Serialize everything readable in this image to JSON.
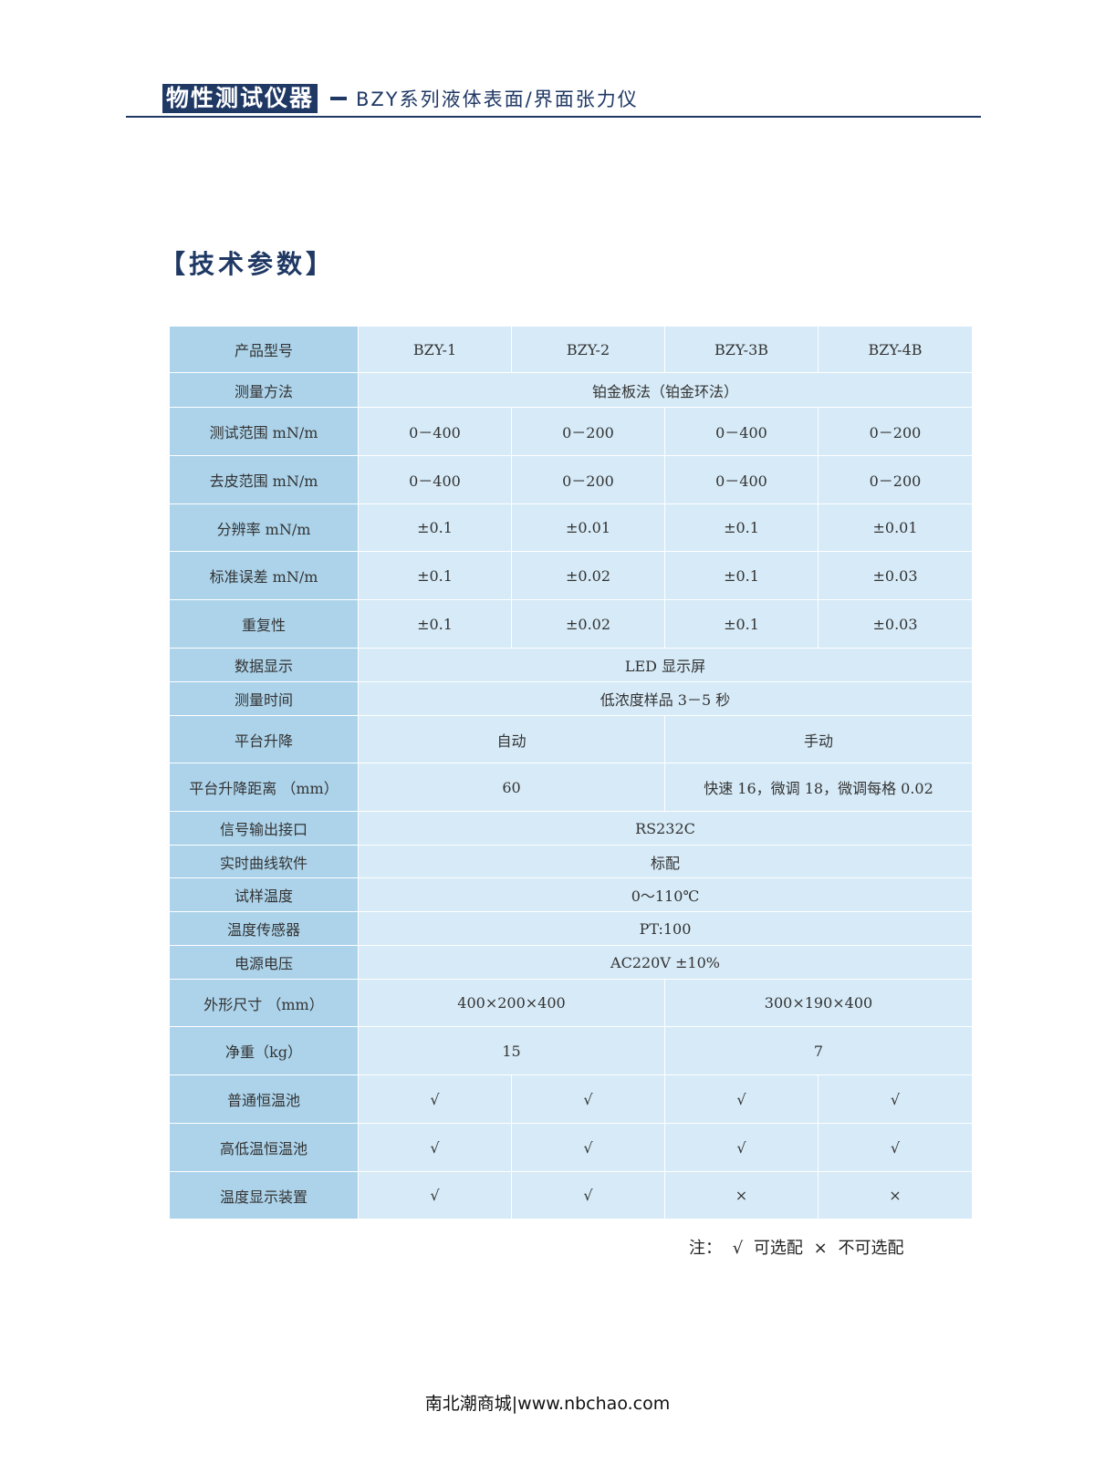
{
  "header": {
    "brand": "物性测试仪器",
    "subtitle": "BZY系列液体表面/界面张力仪"
  },
  "section_title": "【技术参数】",
  "table": {
    "rows": [
      {
        "label": "产品型号",
        "cells": [
          {
            "t": "BZY-1"
          },
          {
            "t": "BZY-2"
          },
          {
            "t": "BZY-3B"
          },
          {
            "t": "BZY-4B"
          }
        ],
        "h": 51
      },
      {
        "label": "测量方法",
        "cells": [
          {
            "t": "铂金板法（铂金环法）",
            "span": 4
          }
        ],
        "h": 38
      },
      {
        "label": "测试范围 mN/m",
        "cells": [
          {
            "t": "0－400"
          },
          {
            "t": "0－200"
          },
          {
            "t": "0－400"
          },
          {
            "t": "0－200"
          }
        ],
        "h": 53
      },
      {
        "label": "去皮范围 mN/m",
        "cells": [
          {
            "t": "0－400"
          },
          {
            "t": "0－200"
          },
          {
            "t": "0－400"
          },
          {
            "t": "0－200"
          }
        ],
        "h": 53
      },
      {
        "label": "分辨率 mN/m",
        "cells": [
          {
            "t": "±0.1"
          },
          {
            "t": "±0.01"
          },
          {
            "t": "±0.1"
          },
          {
            "t": "±0.01"
          }
        ],
        "h": 52
      },
      {
        "label": "标准误差 mN/m",
        "cells": [
          {
            "t": "±0.1"
          },
          {
            "t": "±0.02"
          },
          {
            "t": "±0.1"
          },
          {
            "t": "±0.03"
          }
        ],
        "h": 53
      },
      {
        "label": "重复性",
        "cells": [
          {
            "t": "±0.1"
          },
          {
            "t": "±0.02"
          },
          {
            "t": "±0.1"
          },
          {
            "t": "±0.03"
          }
        ],
        "h": 53
      },
      {
        "label": "数据显示",
        "cells": [
          {
            "t": "LED 显示屏",
            "span": 4
          }
        ],
        "h": 37
      },
      {
        "label": "测量时间",
        "cells": [
          {
            "t": "低浓度样品 3－5 秒",
            "span": 4
          }
        ],
        "h": 37
      },
      {
        "label": "平台升降",
        "cells": [
          {
            "t": "自动",
            "span": 2
          },
          {
            "t": "手动",
            "span": 2
          }
        ],
        "h": 52
      },
      {
        "label": "平台升降距离 （mm）",
        "cells": [
          {
            "t": "60",
            "span": 2
          },
          {
            "t": "快速 16，微调 18，微调每格 0.02",
            "span": 2
          }
        ],
        "h": 53
      },
      {
        "label": "信号输出接口",
        "cells": [
          {
            "t": "RS232C",
            "span": 4
          }
        ],
        "h": 37
      },
      {
        "label": "实时曲线软件",
        "cells": [
          {
            "t": "标配",
            "span": 4
          }
        ],
        "h": 36
      },
      {
        "label": "试样温度",
        "cells": [
          {
            "t": "0～110℃",
            "span": 4
          }
        ],
        "h": 37
      },
      {
        "label": "温度传感器",
        "cells": [
          {
            "t": "PT:100",
            "span": 4
          }
        ],
        "h": 37
      },
      {
        "label": "电源电压",
        "cells": [
          {
            "t": "AC220V ±10%",
            "span": 4
          }
        ],
        "h": 37
      },
      {
        "label": "外形尺寸 （mm）",
        "cells": [
          {
            "t": "400×200×400",
            "span": 2
          },
          {
            "t": "300×190×400",
            "span": 2
          }
        ],
        "h": 52
      },
      {
        "label": "净重（kg）",
        "cells": [
          {
            "t": "15",
            "span": 2
          },
          {
            "t": "7",
            "span": 2
          }
        ],
        "h": 53
      },
      {
        "label": "普通恒温池",
        "cells": [
          {
            "t": "√"
          },
          {
            "t": "√"
          },
          {
            "t": "√"
          },
          {
            "t": "√"
          }
        ],
        "h": 53
      },
      {
        "label": "高低温恒温池",
        "cells": [
          {
            "t": "√"
          },
          {
            "t": "√"
          },
          {
            "t": "√"
          },
          {
            "t": "√"
          }
        ],
        "h": 53
      },
      {
        "label": "温度显示装置",
        "cells": [
          {
            "t": "√"
          },
          {
            "t": "√"
          },
          {
            "t": "×"
          },
          {
            "t": "×"
          }
        ],
        "h": 52
      }
    ]
  },
  "note": "注： √ 可选配  × 不可选配",
  "footer": "南北潮商城|www.nbchao.com"
}
